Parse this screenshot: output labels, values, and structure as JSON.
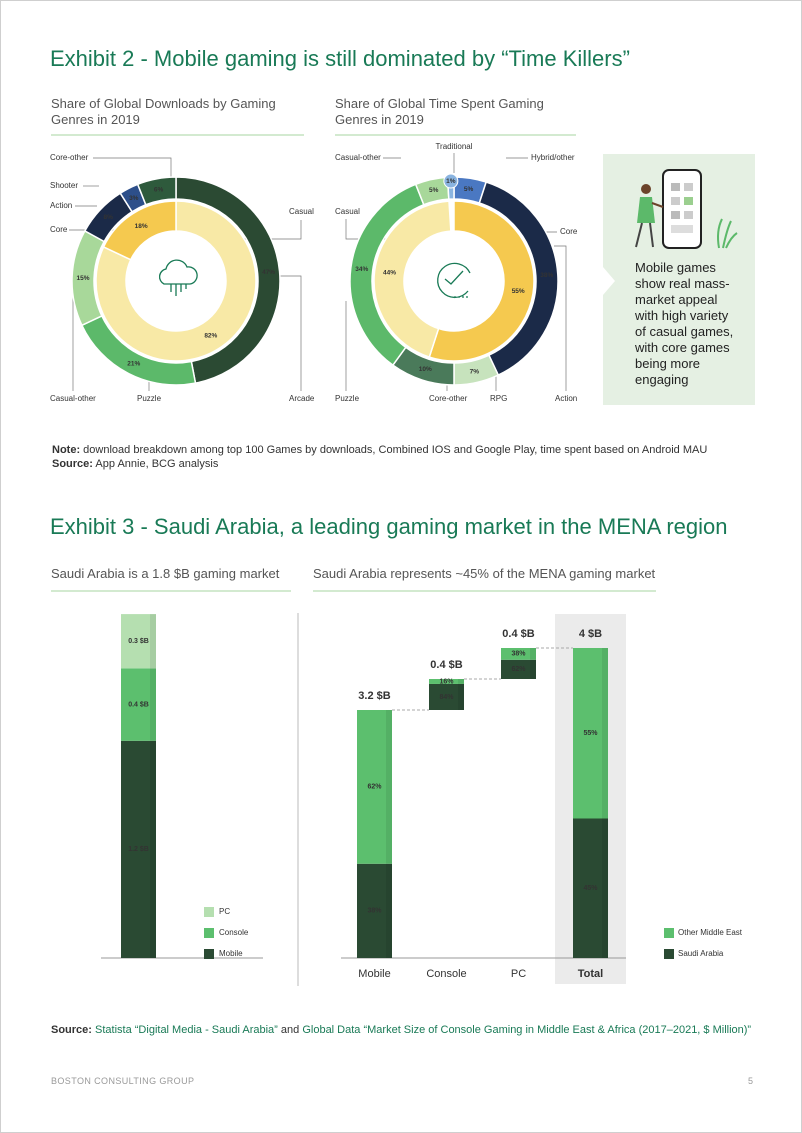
{
  "exhibit2": {
    "title": "Exhibit 2 - Mobile gaming is still dominated by “Time Killers”",
    "charts": [
      {
        "type": "donut",
        "title": "Share of Global Downloads by Gaming Genres in 2019",
        "outer": {
          "names": [
            "Arcade",
            "Puzzle",
            "Casual-other",
            "Action",
            "Shooter",
            "Core-other"
          ],
          "values": [
            47,
            21,
            15,
            8,
            3,
            6
          ],
          "value_labels": [
            "47%",
            "21%",
            "15%",
            "8%",
            "3%",
            "6%"
          ],
          "colors": [
            "#2b4a33",
            "#5cb96a",
            "#a8d89a",
            "#1b2a48",
            "#2d4f8a",
            "#2e5a3c"
          ]
        },
        "inner": {
          "names": [
            "Casual",
            "Core"
          ],
          "values": [
            82,
            18
          ],
          "value_labels": [
            "82%",
            "18%"
          ],
          "colors": [
            "#f8e9a6",
            "#f5c94f"
          ]
        }
      },
      {
        "type": "donut",
        "title": "Share of Global Time Spent Gaming Genres in 2019",
        "outer": {
          "names": [
            "Hybrid/other",
            "Action",
            "RPG",
            "Core-other",
            "Puzzle",
            "Casual-other",
            "Traditional"
          ],
          "values": [
            5,
            38,
            7,
            10,
            34,
            5,
            1
          ],
          "value_labels": [
            "5%",
            "38%",
            "7%",
            "10%",
            "34%",
            "5%",
            "1%"
          ],
          "colors": [
            "#4a78c2",
            "#1b2a48",
            "#c7e3bd",
            "#4a7a5a",
            "#5cb96a",
            "#a8d89a",
            "#8ab4e0"
          ]
        },
        "inner": {
          "names": [
            "Core",
            "Casual"
          ],
          "values": [
            55,
            44
          ],
          "value_labels": [
            "55%",
            "44%"
          ],
          "colors": [
            "#f5c94f",
            "#f8e9a6"
          ]
        }
      }
    ],
    "callout": "Mobile games show real mass-market appeal with high variety of casual games, with core games being more engaging",
    "note_label": "Note:",
    "note": "download breakdown among top 100 Games by downloads, Combined IOS and Google Play, time spent based on Android MAU",
    "source_label": "Source:",
    "source": "App Annie, BCG analysis"
  },
  "exhibit3": {
    "title": "Exhibit 3 - Saudi Arabia, a leading gaming market in the MENA region",
    "stack": {
      "type": "stacked-bar",
      "title": "Saudi Arabia is a 1.8 $B gaming market",
      "series": [
        {
          "name": "Mobile",
          "color": "#2a4a33",
          "value": 1.2,
          "value_label": "1.2 $B"
        },
        {
          "name": "Console",
          "color": "#5cbf6e",
          "value": 0.4,
          "value_label": "0.4 $B"
        },
        {
          "name": "PC",
          "color": "#b5dfb0",
          "value": 0.3,
          "value_label": "0.3 $B"
        }
      ]
    },
    "waterfall": {
      "type": "waterfall",
      "title": "Saudi Arabia represents ~45% of the MENA gaming market",
      "categories": [
        "Mobile",
        "Console",
        "PC",
        "Total"
      ],
      "values": [
        3.2,
        0.4,
        0.4,
        4
      ],
      "value_labels": [
        "3.2 $B",
        "0.4 $B",
        "0.4 $B",
        "4 $B"
      ],
      "series": [
        {
          "name": "Saudi Arabia",
          "color": "#2a4a33",
          "values": [
            38,
            84,
            62,
            45
          ],
          "value_labels": [
            "38%",
            "84%",
            "62%",
            "45%"
          ]
        },
        {
          "name": "Other Middle East",
          "color": "#5cbf6e",
          "values": [
            62,
            16,
            38,
            55
          ],
          "value_labels": [
            "62%",
            "16%",
            "38%",
            "55%"
          ]
        }
      ]
    },
    "source_label": "Source:",
    "source_ref1": "Statista “Digital Media - Saudi Arabia”",
    "source_joiner": "and",
    "source_ref2": "Global Data “Market Size of Console Gaming in Middle East & Africa (2017–2021, $ Million)”"
  },
  "footer": {
    "org": "BOSTON CONSULTING GROUP",
    "page": 5
  }
}
